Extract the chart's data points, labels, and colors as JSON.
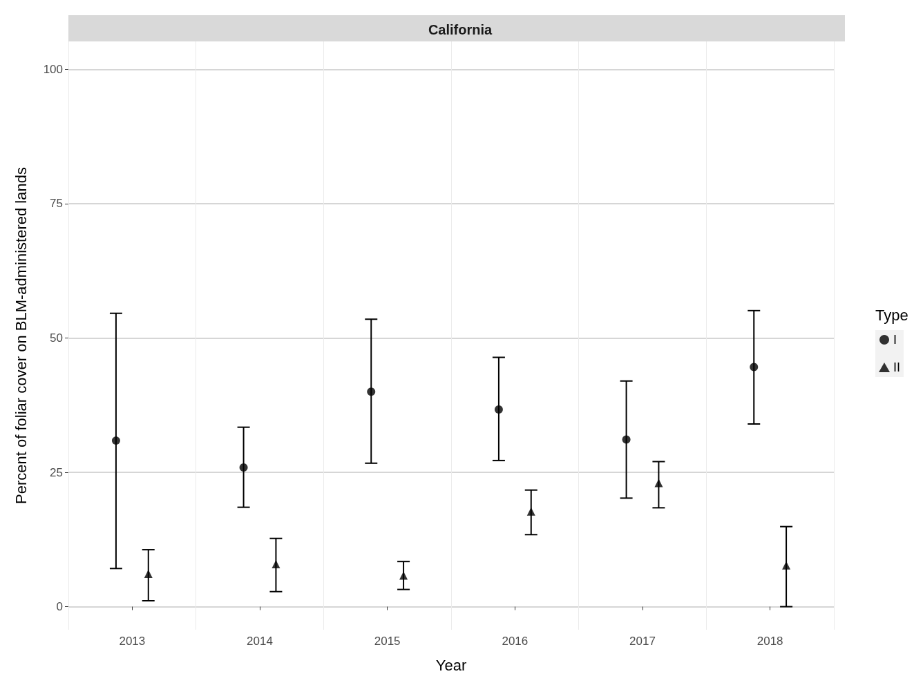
{
  "chart_data": {
    "type": "scatter",
    "title": "California",
    "xlabel": "Year",
    "ylabel": "Percent of foliar cover on BLM-administered lands",
    "legend_title": "Type",
    "categories": [
      "2013",
      "2014",
      "2015",
      "2016",
      "2017",
      "2018"
    ],
    "series": [
      {
        "name": "I",
        "color": "#000000",
        "marker": "circle",
        "values": [
          30.9,
          25.9,
          40.0,
          36.7,
          31.1,
          44.6
        ],
        "errors": [
          [
            7.1,
            54.6
          ],
          [
            18.5,
            33.4
          ],
          [
            26.7,
            53.5
          ],
          [
            27.2,
            46.4
          ],
          [
            20.2,
            42.0
          ],
          [
            34.0,
            55.1
          ]
        ]
      },
      {
        "name": "II",
        "color": "#000000",
        "marker": "triangle",
        "values": [
          6.1,
          7.9,
          5.8,
          17.7,
          23.0,
          7.7
        ],
        "errors": [
          [
            1.1,
            10.6
          ],
          [
            2.8,
            12.7
          ],
          [
            3.2,
            8.4
          ],
          [
            13.4,
            21.7
          ],
          [
            18.4,
            27.0
          ],
          [
            0.0,
            14.9
          ]
        ]
      }
    ],
    "ylim": [
      -4.3,
      105.2
    ],
    "yticks": [
      0,
      25,
      50,
      75,
      100
    ],
    "grid": true,
    "legend": "right"
  }
}
